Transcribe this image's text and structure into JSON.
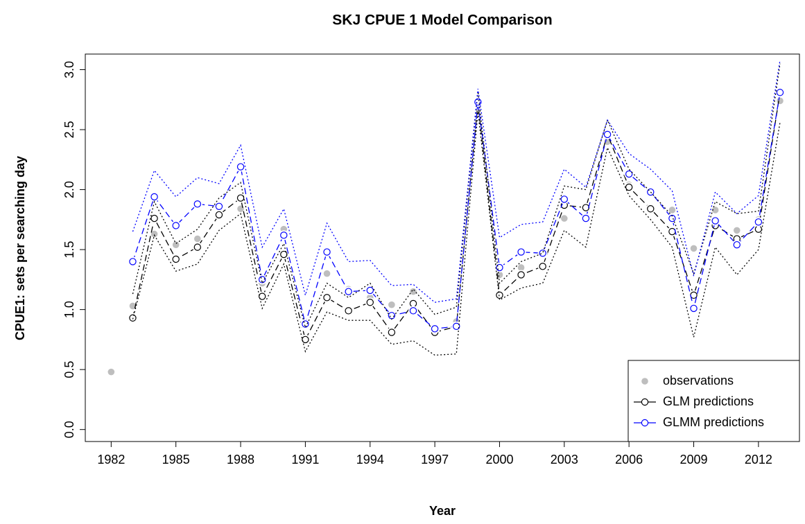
{
  "chart_data": {
    "type": "line",
    "title": "SKJ CPUE 1 Model Comparison",
    "x_label": "Year",
    "y_label": "CPUE1: sets per searching day",
    "x": [
      1982,
      1983,
      1984,
      1985,
      1986,
      1987,
      1988,
      1989,
      1990,
      1991,
      1992,
      1993,
      1994,
      1995,
      1996,
      1997,
      1998,
      1999,
      2000,
      2001,
      2002,
      2003,
      2004,
      2005,
      2006,
      2007,
      2008,
      2009,
      2010,
      2011,
      2012,
      2013
    ],
    "xlim": [
      1980.8,
      2013.9
    ],
    "xticks": [
      1982,
      1985,
      1988,
      1991,
      1994,
      1997,
      2000,
      2003,
      2006,
      2009,
      2012
    ],
    "ylim": [
      -0.1,
      3.13
    ],
    "yticks": [
      {
        "value": 0,
        "label": "0.0"
      },
      0.5,
      {
        "value": 1,
        "label": "1.0"
      },
      1.5,
      {
        "value": 2,
        "label": "2.0"
      },
      2.5,
      {
        "value": 3,
        "label": "3.0"
      }
    ],
    "legend_position": "bottom-right",
    "series": [
      {
        "name": "observations",
        "color": "#bebebe",
        "marker": "dot",
        "line": "none",
        "values": [
          0.48,
          1.03,
          1.63,
          1.54,
          1.59,
          1.79,
          1.84,
          1.22,
          1.67,
          0.87,
          1.3,
          1.17,
          1.1,
          1.04,
          1.15,
          0.83,
          0.9,
          2.72,
          1.29,
          1.35,
          1.48,
          1.76,
          1.85,
          2.4,
          2.04,
          1.85,
          1.83,
          1.51,
          1.83,
          1.66,
          1.75,
          2.74
        ]
      },
      {
        "name": "GLM predictions",
        "color": "#000000",
        "marker": "circle",
        "line": "dashed",
        "values": [
          null,
          0.93,
          1.76,
          1.42,
          1.52,
          1.79,
          1.93,
          1.11,
          1.46,
          0.75,
          1.1,
          0.99,
          1.06,
          0.81,
          1.05,
          0.81,
          0.86,
          2.72,
          1.12,
          1.29,
          1.36,
          1.87,
          1.85,
          2.46,
          2.02,
          1.84,
          1.65,
          1.12,
          1.7,
          1.59,
          1.67,
          2.81
        ]
      },
      {
        "name": "GLMM predictions",
        "color": "#0000ff",
        "marker": "circle",
        "line": "dashed",
        "values": [
          null,
          1.4,
          1.94,
          1.7,
          1.88,
          1.86,
          2.19,
          1.25,
          1.62,
          0.88,
          1.48,
          1.15,
          1.16,
          0.95,
          0.99,
          0.84,
          0.86,
          2.73,
          1.35,
          1.48,
          1.47,
          1.92,
          1.76,
          2.46,
          2.13,
          1.98,
          1.76,
          1.01,
          1.74,
          1.54,
          1.73,
          2.81
        ]
      },
      {
        "color": "#000000",
        "marker": "none",
        "line": "dotted",
        "values": [
          null,
          1.13,
          1.9,
          1.55,
          1.67,
          1.93,
          2.06,
          1.22,
          1.55,
          0.85,
          1.22,
          1.1,
          1.22,
          0.92,
          1.17,
          0.96,
          1.02,
          2.82,
          1.22,
          1.4,
          1.47,
          2.03,
          2.0,
          2.58,
          2.17,
          1.98,
          1.78,
          1.3,
          1.9,
          1.8,
          1.82,
          3.05
        ]
      },
      {
        "color": "#000000",
        "marker": "none",
        "line": "dotted",
        "values": [
          null,
          0.92,
          1.62,
          1.32,
          1.38,
          1.66,
          1.8,
          1.01,
          1.38,
          0.65,
          0.98,
          0.91,
          0.91,
          0.71,
          0.74,
          0.62,
          0.63,
          2.65,
          1.08,
          1.18,
          1.22,
          1.66,
          1.52,
          2.35,
          1.95,
          1.75,
          1.52,
          0.77,
          1.52,
          1.29,
          1.5,
          2.56
        ]
      },
      {
        "color": "#0000ff",
        "marker": "none",
        "line": "dotted",
        "values": [
          null,
          1.65,
          2.16,
          1.94,
          2.1,
          2.05,
          2.37,
          1.52,
          1.84,
          1.12,
          1.72,
          1.4,
          1.41,
          1.2,
          1.21,
          1.06,
          1.09,
          2.84,
          1.6,
          1.71,
          1.73,
          2.17,
          2.02,
          2.58,
          2.3,
          2.17,
          1.99,
          1.28,
          1.98,
          1.8,
          1.95,
          3.08
        ]
      }
    ]
  }
}
